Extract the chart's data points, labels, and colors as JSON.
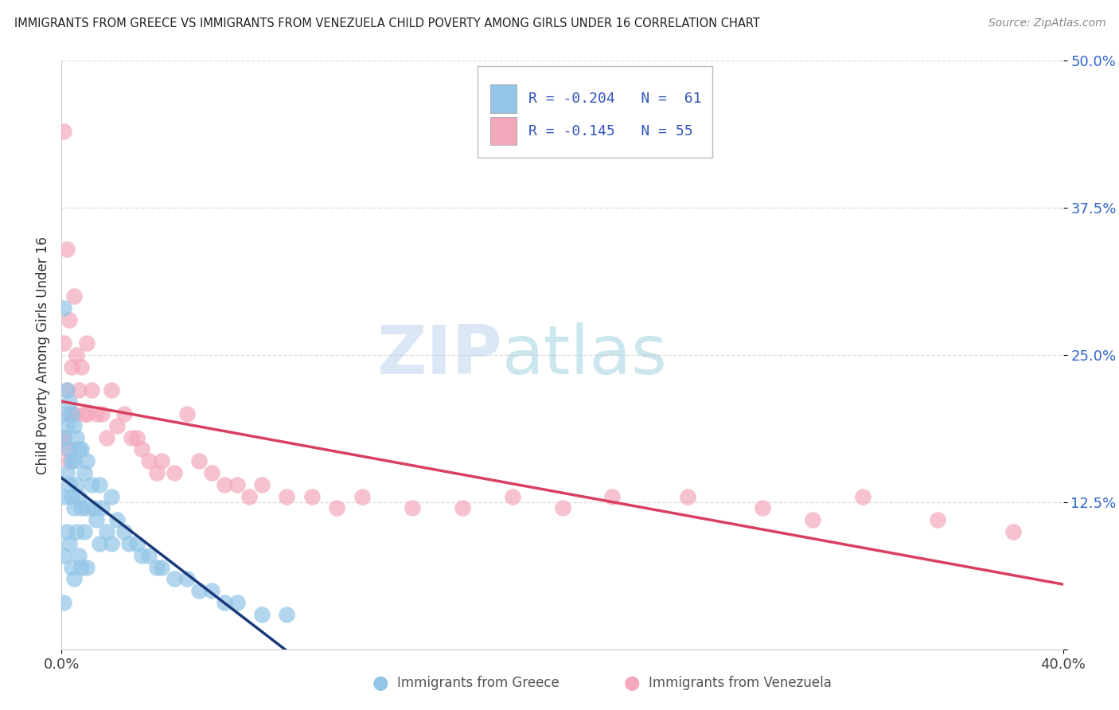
{
  "title": "IMMIGRANTS FROM GREECE VS IMMIGRANTS FROM VENEZUELA CHILD POVERTY AMONG GIRLS UNDER 16 CORRELATION CHART",
  "source": "Source: ZipAtlas.com",
  "ylabel": "Child Poverty Among Girls Under 16",
  "xlim": [
    0.0,
    0.4
  ],
  "ylim": [
    0.0,
    0.5
  ],
  "yticks": [
    0.0,
    0.125,
    0.25,
    0.375,
    0.5
  ],
  "ytick_labels": [
    "",
    "12.5%",
    "25.0%",
    "37.5%",
    "50.0%"
  ],
  "r1": -0.204,
  "n1": 61,
  "r2": -0.145,
  "n2": 55,
  "color_greece": "#92C5E8",
  "color_venezuela": "#F4A8BB",
  "trendline_color_greece": "#1A3A7A",
  "trendline_color_venezuela": "#D94060",
  "trendline_dashed_color": "#AACCEE",
  "watermark_left": "ZIP",
  "watermark_right": "atlas",
  "background_color": "#FFFFFF",
  "grid_color": "#DDDDDD",
  "scatter_greece_x": [
    0.001,
    0.001,
    0.001,
    0.001,
    0.001,
    0.002,
    0.002,
    0.002,
    0.002,
    0.003,
    0.003,
    0.003,
    0.003,
    0.004,
    0.004,
    0.004,
    0.004,
    0.005,
    0.005,
    0.005,
    0.005,
    0.006,
    0.006,
    0.006,
    0.007,
    0.007,
    0.007,
    0.008,
    0.008,
    0.008,
    0.009,
    0.009,
    0.01,
    0.01,
    0.01,
    0.012,
    0.013,
    0.014,
    0.015,
    0.015,
    0.016,
    0.018,
    0.02,
    0.02,
    0.022,
    0.025,
    0.027,
    0.03,
    0.032,
    0.035,
    0.038,
    0.04,
    0.045,
    0.05,
    0.055,
    0.06,
    0.065,
    0.07,
    0.08,
    0.09,
    0.001
  ],
  "scatter_greece_y": [
    0.29,
    0.2,
    0.18,
    0.13,
    0.08,
    0.22,
    0.19,
    0.15,
    0.1,
    0.21,
    0.17,
    0.14,
    0.09,
    0.2,
    0.16,
    0.13,
    0.07,
    0.19,
    0.16,
    0.12,
    0.06,
    0.18,
    0.14,
    0.1,
    0.17,
    0.13,
    0.08,
    0.17,
    0.12,
    0.07,
    0.15,
    0.1,
    0.16,
    0.12,
    0.07,
    0.14,
    0.12,
    0.11,
    0.14,
    0.09,
    0.12,
    0.1,
    0.13,
    0.09,
    0.11,
    0.1,
    0.09,
    0.09,
    0.08,
    0.08,
    0.07,
    0.07,
    0.06,
    0.06,
    0.05,
    0.05,
    0.04,
    0.04,
    0.03,
    0.03,
    0.04
  ],
  "scatter_venezuela_x": [
    0.001,
    0.001,
    0.001,
    0.002,
    0.002,
    0.003,
    0.003,
    0.004,
    0.005,
    0.005,
    0.006,
    0.007,
    0.008,
    0.009,
    0.01,
    0.01,
    0.012,
    0.014,
    0.016,
    0.018,
    0.02,
    0.022,
    0.025,
    0.028,
    0.03,
    0.032,
    0.035,
    0.038,
    0.04,
    0.045,
    0.05,
    0.055,
    0.06,
    0.065,
    0.07,
    0.075,
    0.08,
    0.09,
    0.1,
    0.11,
    0.12,
    0.14,
    0.16,
    0.18,
    0.2,
    0.22,
    0.25,
    0.28,
    0.3,
    0.32,
    0.35,
    0.38,
    0.001,
    0.002,
    0.003
  ],
  "scatter_venezuela_y": [
    0.44,
    0.26,
    0.18,
    0.34,
    0.22,
    0.28,
    0.2,
    0.24,
    0.3,
    0.2,
    0.25,
    0.22,
    0.24,
    0.2,
    0.26,
    0.2,
    0.22,
    0.2,
    0.2,
    0.18,
    0.22,
    0.19,
    0.2,
    0.18,
    0.18,
    0.17,
    0.16,
    0.15,
    0.16,
    0.15,
    0.2,
    0.16,
    0.15,
    0.14,
    0.14,
    0.13,
    0.14,
    0.13,
    0.13,
    0.12,
    0.13,
    0.12,
    0.12,
    0.13,
    0.12,
    0.13,
    0.13,
    0.12,
    0.11,
    0.13,
    0.11,
    0.1,
    0.18,
    0.17,
    0.16
  ]
}
